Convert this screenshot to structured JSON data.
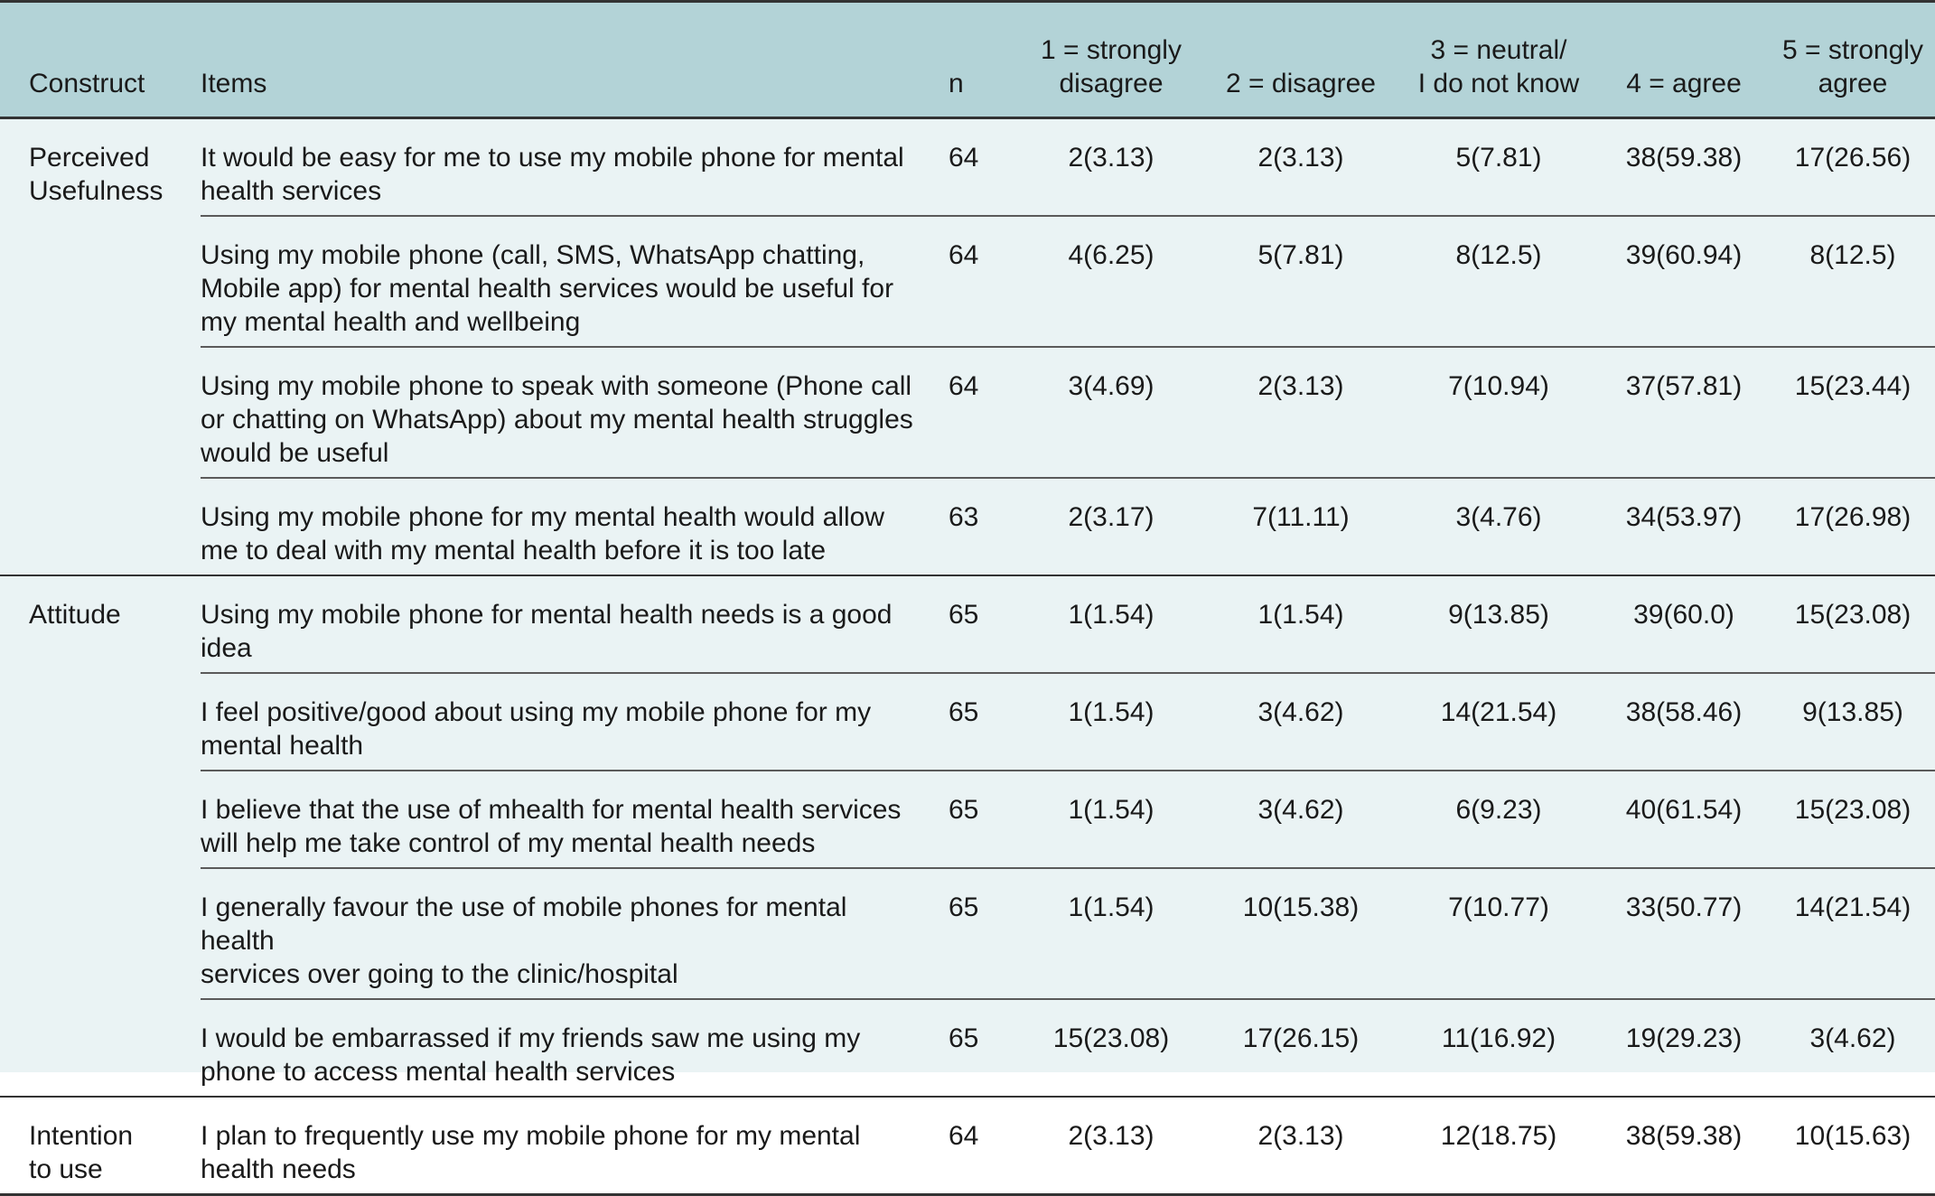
{
  "headers": {
    "construct": "Construct",
    "items": "Items",
    "n": "n",
    "c1": [
      "1 = strongly",
      "disagree"
    ],
    "c2": "2 = disagree",
    "c3": [
      "3 = neutral/",
      "I do not know"
    ],
    "c4": "4 = agree",
    "c5": [
      "5 = strongly",
      "agree"
    ]
  },
  "groups": [
    {
      "construct": [
        "Perceived",
        "Usefulness"
      ],
      "rows": [
        {
          "item": [
            "It would be easy for me to use my mobile phone for mental",
            "health services"
          ],
          "n": "64",
          "v1": "2(3.13)",
          "v2": "2(3.13)",
          "v3": "5(7.81)",
          "v4": "38(59.38)",
          "v5": "17(26.56)"
        },
        {
          "item": [
            "Using my mobile phone (call, SMS, WhatsApp chatting,",
            "Mobile app) for mental health services would be useful for",
            "my mental health and wellbeing"
          ],
          "n": "64",
          "v1": "4(6.25)",
          "v2": "5(7.81)",
          "v3": "8(12.5)",
          "v4": "39(60.94)",
          "v5": "8(12.5)"
        },
        {
          "item": [
            "Using my mobile phone to speak with someone (Phone call",
            "or chatting on WhatsApp) about my mental health struggles",
            "would be useful"
          ],
          "n": "64",
          "v1": "3(4.69)",
          "v2": "2(3.13)",
          "v3": "7(10.94)",
          "v4": "37(57.81)",
          "v5": "15(23.44)"
        },
        {
          "item": [
            "Using my mobile phone for my mental health would allow",
            "me to deal with my mental health before it is too late"
          ],
          "n": "63",
          "v1": "2(3.17)",
          "v2": "7(11.11)",
          "v3": "3(4.76)",
          "v4": "34(53.97)",
          "v5": "17(26.98)"
        }
      ]
    },
    {
      "construct": [
        "Attitude"
      ],
      "rows": [
        {
          "item": [
            "Using my mobile phone for mental health needs is a good",
            "idea"
          ],
          "n": "65",
          "v1": "1(1.54)",
          "v2": "1(1.54)",
          "v3": "9(13.85)",
          "v4": "39(60.0)",
          "v5": "15(23.08)"
        },
        {
          "item": [
            "I feel positive/good about using my mobile phone for my",
            "mental health"
          ],
          "n": "65",
          "v1": "1(1.54)",
          "v2": "3(4.62)",
          "v3": "14(21.54)",
          "v4": "38(58.46)",
          "v5": "9(13.85)"
        },
        {
          "item": [
            "I believe that the use of mhealth for mental health services",
            "will help me take control of my mental health needs"
          ],
          "n": "65",
          "v1": "1(1.54)",
          "v2": "3(4.62)",
          "v3": "6(9.23)",
          "v4": "40(61.54)",
          "v5": "15(23.08)"
        },
        {
          "item": [
            "I generally favour the use of mobile phones for mental health",
            "services over going to the clinic/hospital"
          ],
          "n": "65",
          "v1": "1(1.54)",
          "v2": "10(15.38)",
          "v3": "7(10.77)",
          "v4": "33(50.77)",
          "v5": "14(21.54)"
        },
        {
          "item": [
            "I would be embarrassed if my friends saw me using my",
            "phone to access mental health services"
          ],
          "n": "65",
          "v1": "15(23.08)",
          "v2": "17(26.15)",
          "v3": "11(16.92)",
          "v4": "19(29.23)",
          "v5": "3(4.62)"
        }
      ]
    },
    {
      "construct": [
        "Intention",
        "to use"
      ],
      "rows": [
        {
          "item": [
            "I plan to frequently use my mobile phone for my mental",
            "health needs"
          ],
          "n": "64",
          "v1": "2(3.13)",
          "v2": "2(3.13)",
          "v3": "12(18.75)",
          "v4": "38(59.38)",
          "v5": "10(15.63)"
        }
      ]
    }
  ]
}
